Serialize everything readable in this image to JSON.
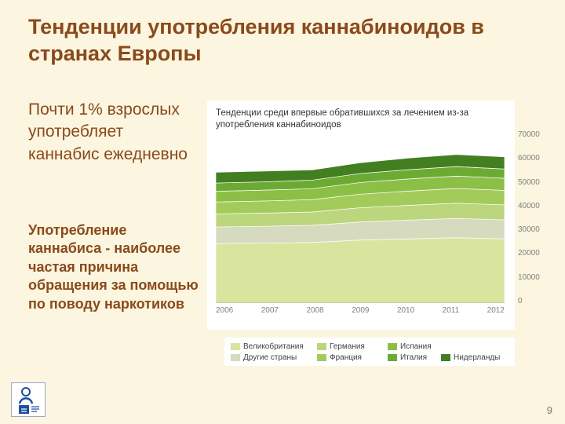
{
  "slide": {
    "title": "Тенденции употребления каннабиноидов в странах Европы",
    "background_color": "#FCF5DF",
    "text_color": "#8A4A1C"
  },
  "left": {
    "paragraph1": "Почти 1% взрослых употребляет каннабис ежедневно",
    "paragraph2": "Употребление каннабиса - наиболее частая причина обращения за помощью по поводу наркотиков"
  },
  "chart_data": {
    "type": "area",
    "stacked": true,
    "title": "Тенденции среди впервые обратившихся за лечением из-за употребления каннабиноидов",
    "x": [
      2006,
      2007,
      2008,
      2009,
      2010,
      2011,
      2012
    ],
    "ylim": [
      0,
      70000
    ],
    "yticks": [
      0,
      10000,
      20000,
      30000,
      40000,
      50000,
      60000,
      70000
    ],
    "y_axis_side": "right",
    "grid": false,
    "legend_position": "bottom",
    "series": [
      {
        "name": "Великобритания",
        "color": "#d9e49e",
        "values": [
          25000,
          25200,
          25500,
          26500,
          27000,
          27500,
          27000
        ]
      },
      {
        "name": "Другие страны",
        "color": "#d6dabe",
        "values": [
          7000,
          7100,
          7200,
          7600,
          7900,
          8100,
          8000
        ]
      },
      {
        "name": "Германия",
        "color": "#bcd67d",
        "values": [
          5500,
          5550,
          5600,
          6000,
          6200,
          6400,
          6300
        ]
      },
      {
        "name": "Франция",
        "color": "#a3cb5b",
        "values": [
          5000,
          5100,
          5200,
          5700,
          6000,
          6200,
          6100
        ]
      },
      {
        "name": "Испания",
        "color": "#8cbf45",
        "values": [
          4500,
          4550,
          4600,
          4900,
          5100,
          5200,
          5100
        ]
      },
      {
        "name": "Италия",
        "color": "#6cab33",
        "values": [
          3500,
          3500,
          3600,
          3800,
          3900,
          4000,
          3900
        ]
      },
      {
        "name": "Нидерланды",
        "color": "#417f21",
        "values": [
          4500,
          4500,
          4300,
          4500,
          4900,
          5100,
          5100
        ]
      }
    ],
    "legend_rows": [
      [
        "Великобритания",
        "Германия",
        "Испания"
      ],
      [
        "Другие страны",
        "Франция",
        "Италия",
        "Нидерланды"
      ]
    ]
  },
  "footer": {
    "page_number": "9"
  }
}
